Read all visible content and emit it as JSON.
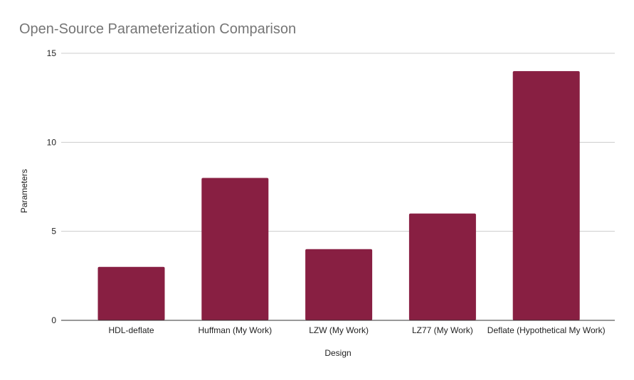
{
  "chart_data": {
    "type": "bar",
    "title": "Open-Source Parameterization Comparison",
    "xlabel": "Design",
    "ylabel": "Parameters",
    "categories": [
      "HDL-deflate",
      "Huffman (My Work)",
      "LZW (My Work)",
      "LZ77 (My Work)",
      "Deflate (Hypothetical My Work)"
    ],
    "values": [
      3,
      8,
      4,
      6,
      14
    ],
    "ylim": [
      0,
      15
    ],
    "yticks": [
      0,
      5,
      10,
      15
    ],
    "grid": true,
    "legend": "none",
    "bar_color": "#881f42"
  }
}
